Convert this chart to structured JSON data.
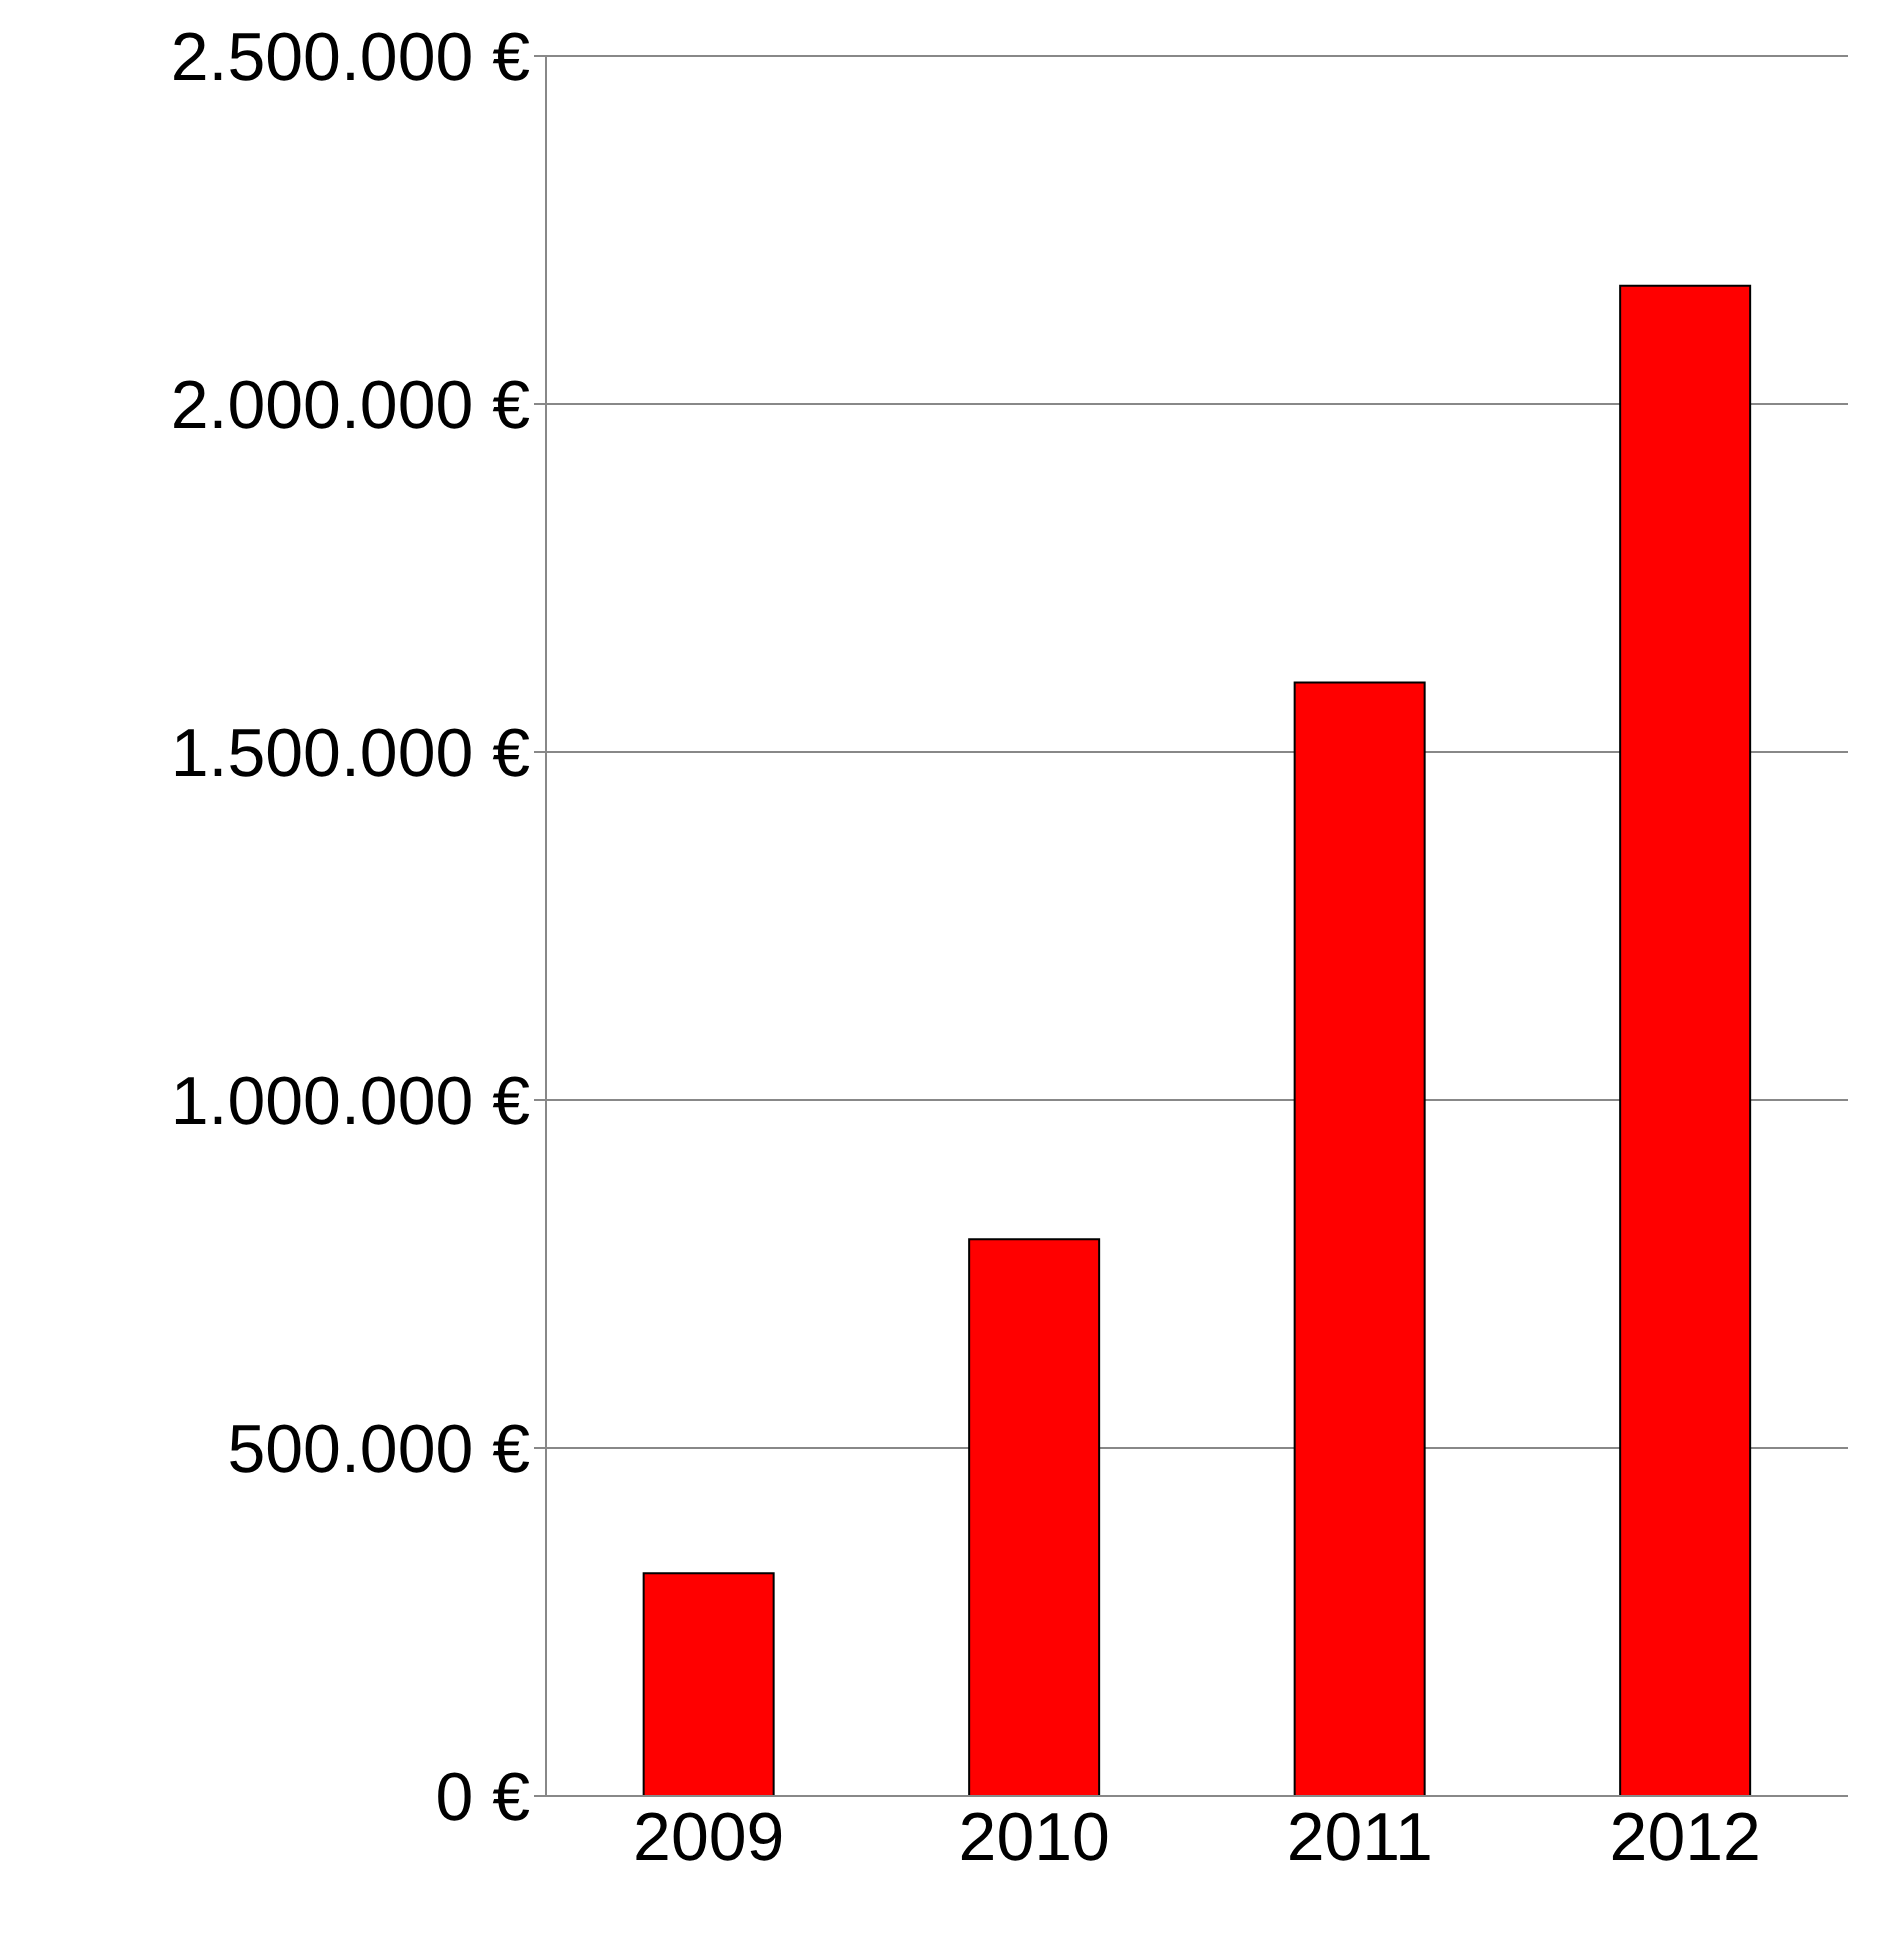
{
  "chart_data": {
    "type": "bar",
    "categories": [
      "2009",
      "2010",
      "2011",
      "2012"
    ],
    "values": [
      320000,
      800000,
      1600000,
      2170000
    ],
    "color": "#ff0000",
    "ylim": [
      0,
      2500000
    ],
    "yticks": [
      {
        "value": 0,
        "label": "0 €"
      },
      {
        "value": 500000,
        "label": "500.000 €"
      },
      {
        "value": 1000000,
        "label": "1.000.000 €"
      },
      {
        "value": 1500000,
        "label": "1.500.000 €"
      },
      {
        "value": 2000000,
        "label": "2.000.000 €"
      },
      {
        "value": 2500000,
        "label": "2.500.000 €"
      }
    ],
    "grid": "y"
  }
}
